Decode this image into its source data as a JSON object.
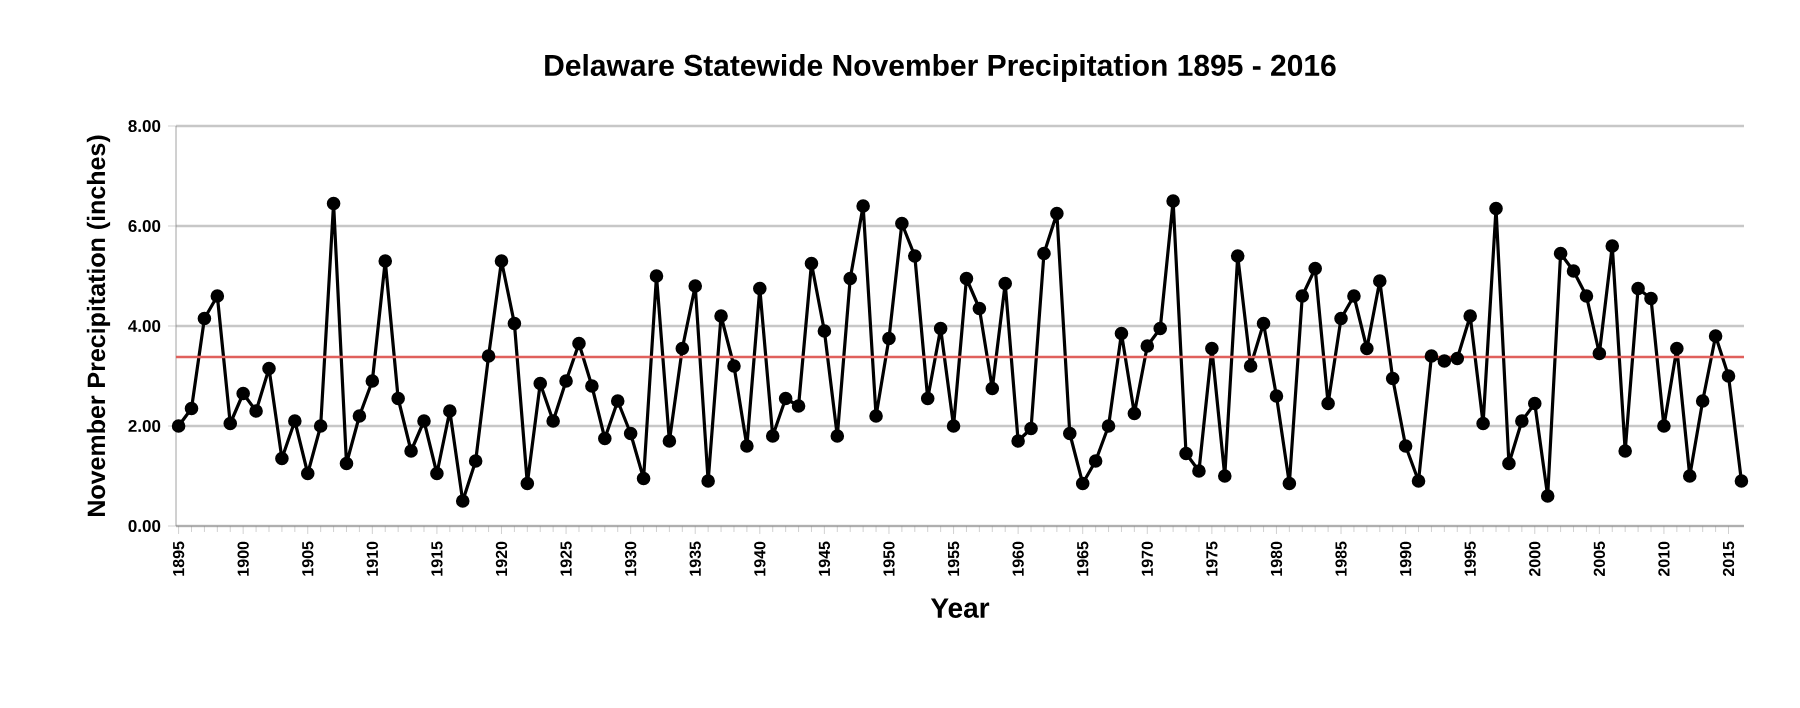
{
  "chart_data": {
    "type": "line",
    "title": "Delaware Statewide November Precipitation 1895 - 2016",
    "xlabel": "Year",
    "ylabel": "November Precipitation (inches)",
    "x": [
      1895,
      1896,
      1897,
      1898,
      1899,
      1900,
      1901,
      1902,
      1903,
      1904,
      1905,
      1906,
      1907,
      1908,
      1909,
      1910,
      1911,
      1912,
      1913,
      1914,
      1915,
      1916,
      1917,
      1918,
      1919,
      1920,
      1921,
      1922,
      1923,
      1924,
      1925,
      1926,
      1927,
      1928,
      1929,
      1930,
      1931,
      1932,
      1933,
      1934,
      1935,
      1936,
      1937,
      1938,
      1939,
      1940,
      1941,
      1942,
      1943,
      1944,
      1945,
      1946,
      1947,
      1948,
      1949,
      1950,
      1951,
      1952,
      1953,
      1954,
      1955,
      1956,
      1957,
      1958,
      1959,
      1960,
      1961,
      1962,
      1963,
      1964,
      1965,
      1966,
      1967,
      1968,
      1969,
      1970,
      1971,
      1972,
      1973,
      1974,
      1975,
      1976,
      1977,
      1978,
      1979,
      1980,
      1981,
      1982,
      1983,
      1984,
      1985,
      1986,
      1987,
      1988,
      1989,
      1990,
      1991,
      1992,
      1993,
      1994,
      1995,
      1996,
      1997,
      1998,
      1999,
      2000,
      2001,
      2002,
      2003,
      2004,
      2005,
      2006,
      2007,
      2008,
      2009,
      2010,
      2011,
      2012,
      2013,
      2014,
      2015,
      2016
    ],
    "series": [
      {
        "color": "#000000",
        "values": [
          2.0,
          2.35,
          4.15,
          4.6,
          2.05,
          2.65,
          2.3,
          3.15,
          1.35,
          2.1,
          1.05,
          2.0,
          6.45,
          1.25,
          2.2,
          2.9,
          5.3,
          2.55,
          1.5,
          2.1,
          1.05,
          2.3,
          0.5,
          1.3,
          3.4,
          5.3,
          4.05,
          0.85,
          2.85,
          2.1,
          2.9,
          3.65,
          2.8,
          1.75,
          2.5,
          1.85,
          0.95,
          5.0,
          1.7,
          3.55,
          4.8,
          0.9,
          4.2,
          3.2,
          1.6,
          4.75,
          1.8,
          2.55,
          2.4,
          5.25,
          3.9,
          1.8,
          4.95,
          6.4,
          2.2,
          3.75,
          6.05,
          5.4,
          2.55,
          3.95,
          2.0,
          4.95,
          4.35,
          2.75,
          4.85,
          1.7,
          1.95,
          5.45,
          6.25,
          1.85,
          0.85,
          1.3,
          2.0,
          3.85,
          2.25,
          3.6,
          3.95,
          6.5,
          1.45,
          1.1,
          3.55,
          1.0,
          5.4,
          3.2,
          4.05,
          2.6,
          0.85,
          4.6,
          5.15,
          2.45,
          4.15,
          4.6,
          3.55,
          4.9,
          2.95,
          1.6,
          0.9,
          3.4,
          3.3,
          3.35,
          4.2,
          2.05,
          6.35,
          1.25,
          2.1,
          2.45,
          0.6,
          5.45,
          5.1,
          4.6,
          3.45,
          5.6,
          1.5,
          4.75,
          4.55,
          2.0,
          3.55,
          1.0,
          2.5,
          3.8,
          3.0,
          0.9
        ]
      }
    ],
    "xlim": [
      1894.8,
      2016.2
    ],
    "ylim": [
      0,
      8
    ],
    "xticks": [
      1895,
      1900,
      1905,
      1910,
      1915,
      1920,
      1925,
      1930,
      1935,
      1940,
      1945,
      1950,
      1955,
      1960,
      1965,
      1970,
      1975,
      1980,
      1985,
      1990,
      1995,
      2000,
      2005,
      2010,
      2015
    ],
    "yticks": [
      {
        "value": 0,
        "label": "0.00"
      },
      {
        "value": 2,
        "label": "2.00"
      },
      {
        "value": 4,
        "label": "4.00"
      },
      {
        "value": 6,
        "label": "6.00"
      },
      {
        "value": 8,
        "label": "8.00"
      }
    ],
    "ref_lines": [
      {
        "axis": "y",
        "value": 3.38,
        "color": "#e0605c"
      }
    ],
    "grid": "y",
    "marker": "circle",
    "line_style": "solid"
  }
}
